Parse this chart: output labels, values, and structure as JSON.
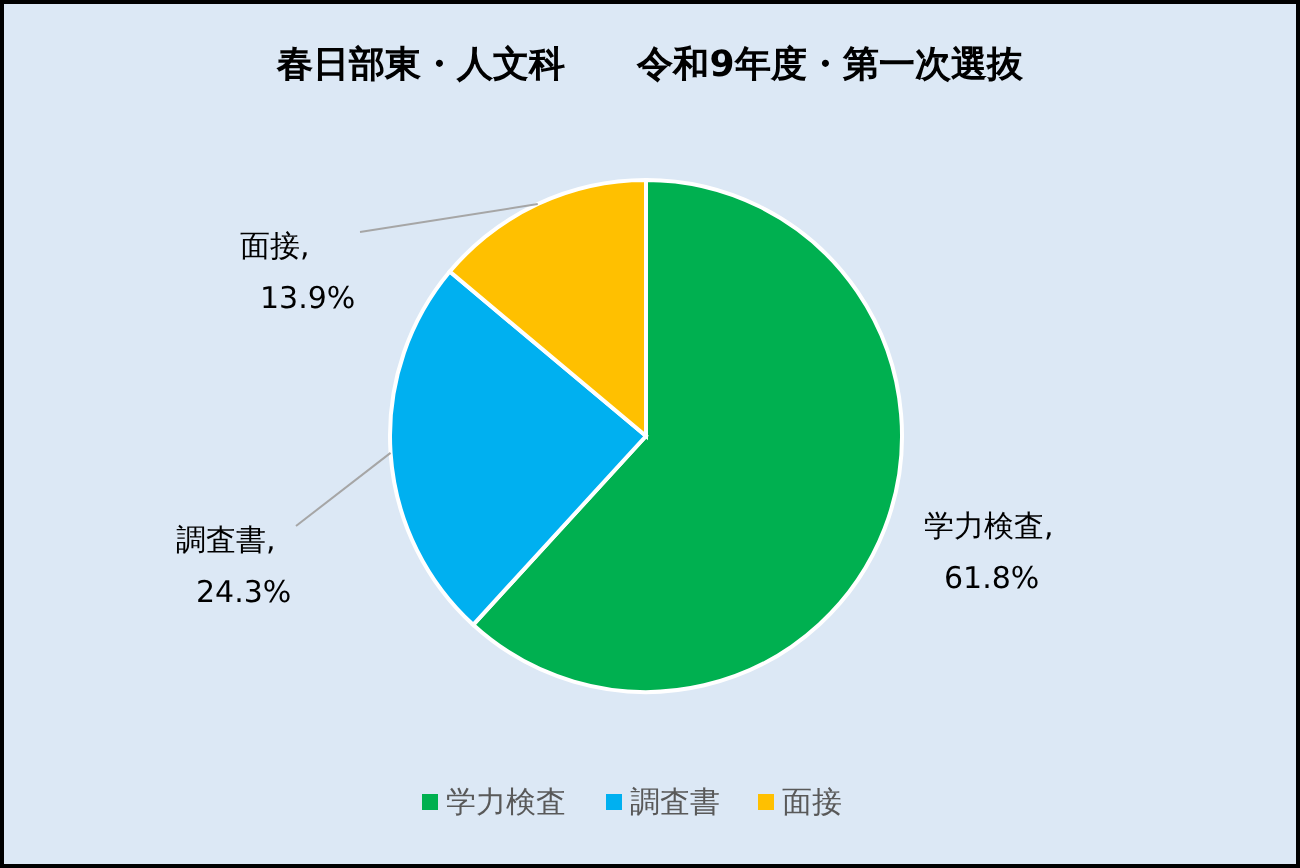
{
  "chart_data": {
    "type": "pie",
    "title": "春日部東・人文科　　令和9年度・第一次選抜",
    "categories": [
      "学力検査",
      "調査書",
      "面接"
    ],
    "values": [
      61.8,
      24.3,
      13.9
    ],
    "value_labels": [
      "学力検査,\n61.8%",
      "調査書,\n24.3%",
      "面接,\n13.9%"
    ],
    "colors": [
      "#00b050",
      "#00b0f0",
      "#ffc000"
    ],
    "legend": "bottom"
  }
}
